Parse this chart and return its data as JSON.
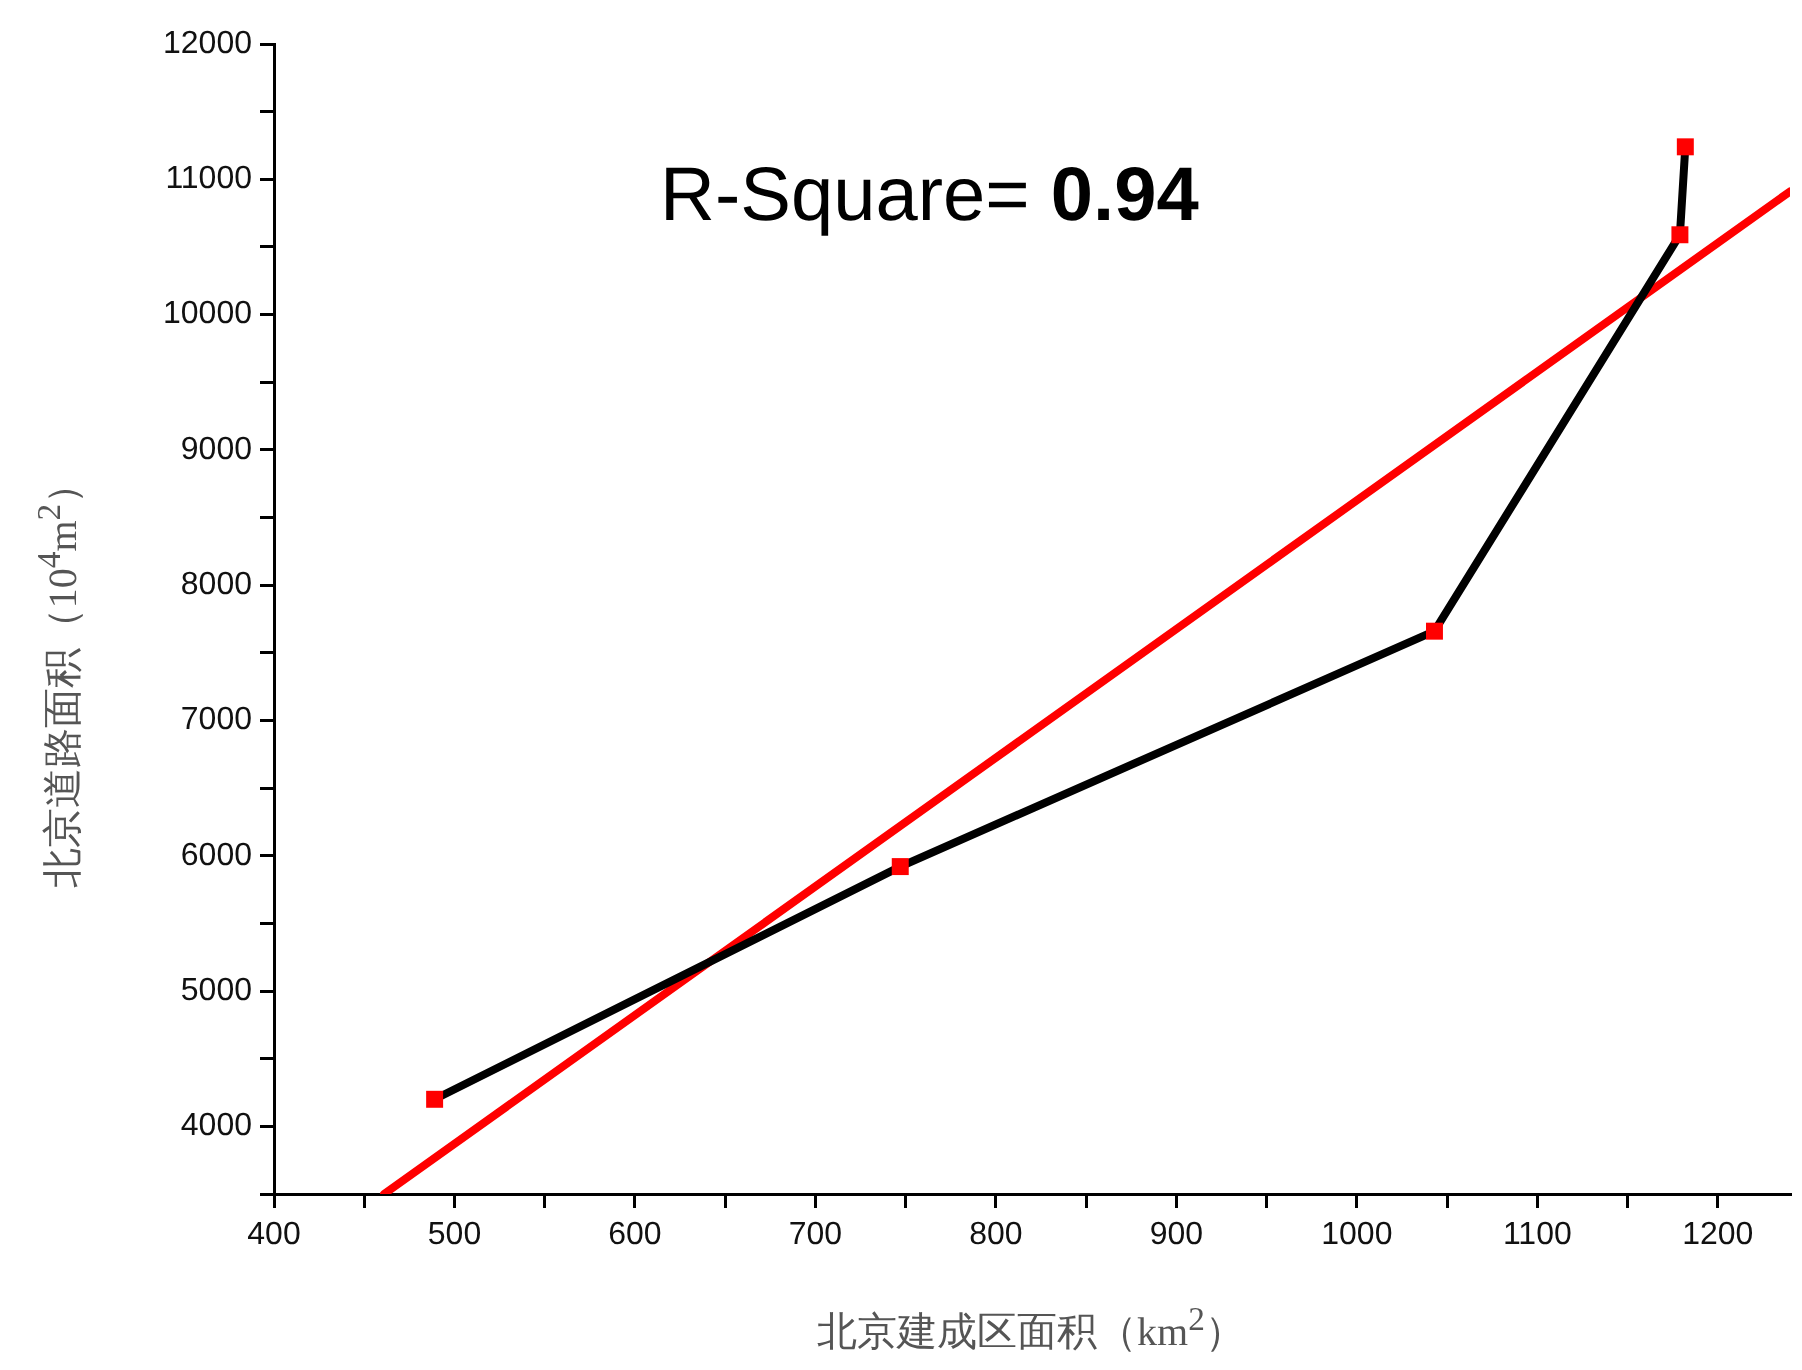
{
  "chart_data": {
    "type": "line",
    "xlabel": "北京建成区面积（km$^{2}$）",
    "ylabel": "北京道路面积（10$^{4}$m$^{2}$）",
    "annotations": [
      "R-Square= 0.94"
    ],
    "series": [
      {
        "color": "#000000",
        "colors": [
          "#ff0000",
          "#ff0000",
          "#ff0000",
          "#ff0000",
          "#ff0000"
        ],
        "marker": "square",
        "x": [
          489,
          747,
          1043,
          1179,
          1182
        ],
        "values": [
          4200,
          5920,
          7660,
          10590,
          11240
        ]
      },
      {
        "color": "#ff0000",
        "marker": "none",
        "x": [
          461,
          1240
        ],
        "values": [
          3500,
          10910
        ]
      }
    ],
    "xlim": [
      400,
      1240
    ],
    "ylim": [
      3500,
      12000
    ],
    "xticks": [
      400,
      {
        "value": 450,
        "label": null
      },
      500,
      {
        "value": 550,
        "label": null
      },
      600,
      {
        "value": 650,
        "label": null
      },
      700,
      {
        "value": 750,
        "label": null
      },
      800,
      {
        "value": 850,
        "label": null
      },
      900,
      {
        "value": 950,
        "label": null
      },
      1000,
      {
        "value": 1050,
        "label": null
      },
      1100,
      {
        "value": 1150,
        "label": null
      },
      1200
    ],
    "yticks": [
      {
        "value": 3500,
        "label": null
      },
      4000,
      {
        "value": 4500,
        "label": null
      },
      5000,
      {
        "value": 5500,
        "label": null
      },
      6000,
      {
        "value": 6500,
        "label": null
      },
      7000,
      {
        "value": 7500,
        "label": null
      },
      8000,
      {
        "value": 8500,
        "label": null
      },
      9000,
      {
        "value": 9500,
        "label": null
      },
      10000,
      {
        "value": 10500,
        "label": null
      },
      11000,
      {
        "value": 11500,
        "label": null
      },
      12000
    ],
    "grid": false,
    "legend": false
  }
}
